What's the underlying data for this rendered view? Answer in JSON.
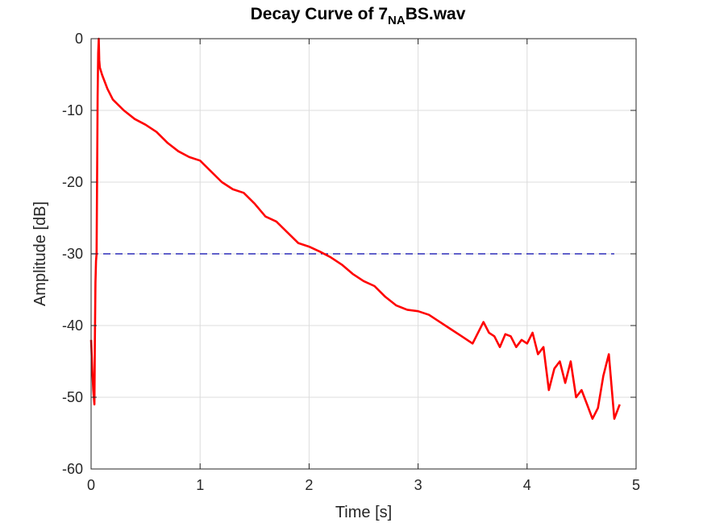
{
  "chart_data": {
    "type": "line",
    "title": "Decay Curve of 7",
    "title_subscript": "NA",
    "title_suffix": "BS.wav",
    "xlabel": "Time [s]",
    "ylabel": "Amplitude [dB]",
    "xlim": [
      0,
      5
    ],
    "ylim": [
      -60,
      0
    ],
    "xticks": [
      0,
      1,
      2,
      3,
      4,
      5
    ],
    "yticks": [
      0,
      -10,
      -20,
      -30,
      -40,
      -50,
      -60
    ],
    "xtick_labels": [
      "0",
      "1",
      "2",
      "3",
      "4",
      "5"
    ],
    "ytick_labels": [
      "0",
      "-10",
      "-20",
      "-30",
      "-40",
      "-50",
      "-60"
    ],
    "grid": true,
    "reference_line": {
      "y": -30,
      "x_range": [
        0,
        4.8
      ],
      "style": "dashed",
      "color": "#0000aa"
    },
    "series": [
      {
        "color": "#ff0000",
        "x": [
          0.0,
          0.01,
          0.02,
          0.03,
          0.035,
          0.04,
          0.045,
          0.05,
          0.055,
          0.06,
          0.065,
          0.07,
          0.075,
          0.08,
          0.1,
          0.15,
          0.2,
          0.3,
          0.4,
          0.5,
          0.6,
          0.7,
          0.8,
          0.9,
          1.0,
          1.1,
          1.2,
          1.3,
          1.4,
          1.5,
          1.6,
          1.7,
          1.8,
          1.9,
          2.0,
          2.1,
          2.2,
          2.3,
          2.4,
          2.5,
          2.6,
          2.7,
          2.8,
          2.9,
          3.0,
          3.1,
          3.2,
          3.3,
          3.4,
          3.5,
          3.6,
          3.65,
          3.7,
          3.75,
          3.8,
          3.85,
          3.9,
          3.95,
          4.0,
          4.05,
          4.1,
          4.15,
          4.2,
          4.25,
          4.3,
          4.35,
          4.4,
          4.45,
          4.5,
          4.55,
          4.6,
          4.65,
          4.7,
          4.75,
          4.8,
          4.85
        ],
        "y": [
          -42,
          -46,
          -49,
          -51,
          -42,
          -34,
          -31,
          -30,
          -20,
          -8,
          -2,
          0,
          -3,
          -4,
          -5,
          -7,
          -8.5,
          -10,
          -11.2,
          -12,
          -13,
          -14.5,
          -15.7,
          -16.5,
          -17,
          -18.5,
          -20,
          -21,
          -21.5,
          -23,
          -24.8,
          -25.5,
          -27,
          -28.5,
          -29,
          -29.7,
          -30.5,
          -31.5,
          -32.8,
          -33.8,
          -34.5,
          -36,
          -37.2,
          -37.8,
          -38,
          -38.5,
          -39.5,
          -40.5,
          -41.5,
          -42.5,
          -39.5,
          -41,
          -41.5,
          -43,
          -41.2,
          -41.5,
          -43,
          -42,
          -42.5,
          -41,
          -44,
          -43,
          -49,
          -46,
          -45,
          -48,
          -45,
          -50,
          -49,
          -51,
          -53,
          -51.5,
          -47,
          -44,
          -53,
          -51
        ]
      }
    ]
  }
}
